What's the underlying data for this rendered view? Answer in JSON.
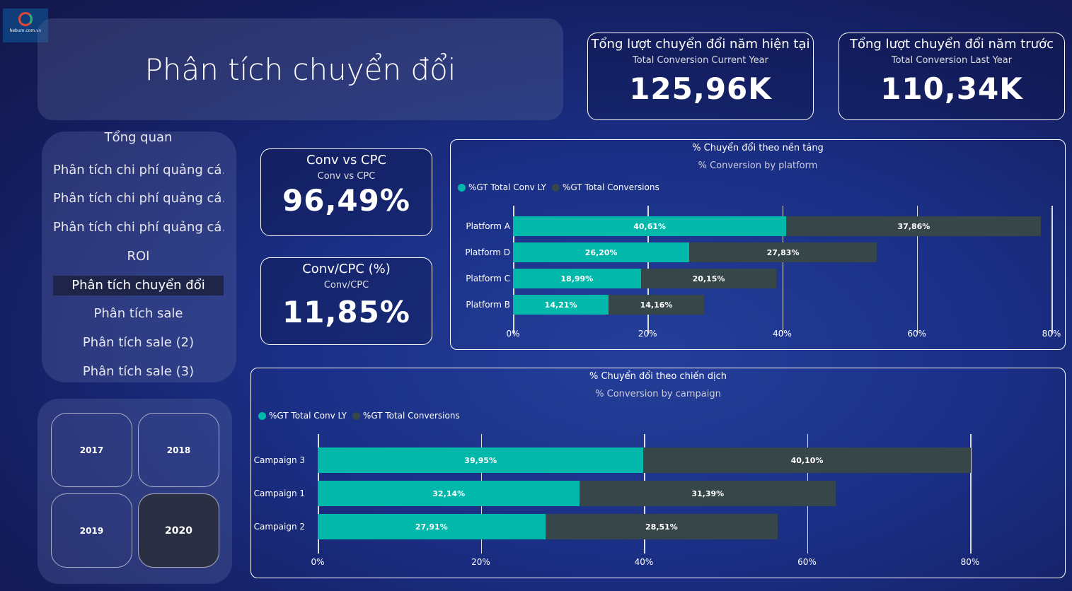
{
  "logo": {
    "text": "hebum.com.vn"
  },
  "title": "Phân tích chuyển đổi",
  "kpis": [
    {
      "title": "Tổng lượt chuyển đổi năm hiện tại",
      "subtitle": "Total Conversion Current Year",
      "value": "125,96K"
    },
    {
      "title": "Tổng lượt chuyển đổi năm trước",
      "subtitle": "Total Conversion Last Year",
      "value": "110,34K"
    },
    {
      "title": "Conv vs CPC",
      "subtitle": "Conv vs CPC",
      "value": "96,49%"
    },
    {
      "title": "Conv/CPC (%)",
      "subtitle": "Conv/CPC",
      "value": "11,85%"
    }
  ],
  "nav": {
    "items": [
      "Tổng quan",
      "Phân tích chi phí quảng cá...",
      "Phân tích chi phí quảng cá...",
      "Phân tích chi phí quảng cá...",
      "ROI",
      "Phân tích chuyển đổi",
      "Phân tích sale",
      "Phân tích sale (2)",
      "Phân tích sale (3)"
    ],
    "active_index": 5
  },
  "years": {
    "items": [
      "2017",
      "2018",
      "2019",
      "2020"
    ],
    "selected": "2020"
  },
  "colors": {
    "ly": "#01b8aa",
    "cur": "#374649"
  },
  "chart_data": [
    {
      "type": "bar",
      "stacked": true,
      "orientation": "horizontal",
      "title": "% Chuyển đổi theo nền tảng",
      "subtitle": "% Conversion by platform",
      "legend": [
        "%GT Total Conv LY",
        "%GT Total Conversions"
      ],
      "legend_position": "top-left",
      "categories": [
        "Platform A",
        "Platform D",
        "Platform C",
        "Platform B"
      ],
      "series": [
        {
          "name": "%GT Total Conv LY",
          "values": [
            40.61,
            26.2,
            18.99,
            14.21
          ],
          "labels": [
            "40,61%",
            "26,20%",
            "18,99%",
            "14,21%"
          ]
        },
        {
          "name": "%GT Total Conversions",
          "values": [
            37.86,
            27.83,
            20.15,
            14.16
          ],
          "labels": [
            "37,86%",
            "27,83%",
            "20,15%",
            "14,16%"
          ]
        }
      ],
      "xlim": [
        0,
        80
      ],
      "ticks": [
        "0%",
        "20%",
        "40%",
        "60%",
        "80%"
      ],
      "tick_values": [
        0,
        20,
        40,
        60,
        80
      ]
    },
    {
      "type": "bar",
      "stacked": true,
      "orientation": "horizontal",
      "title": "% Chuyển đổi theo chiến dịch",
      "subtitle": "% Conversion by campaign",
      "legend": [
        "%GT Total Conv LY",
        "%GT Total Conversions"
      ],
      "legend_position": "top-left",
      "categories": [
        "Campaign 3",
        "Campaign 1",
        "Campaign 2"
      ],
      "series": [
        {
          "name": "%GT Total Conv LY",
          "values": [
            39.95,
            32.14,
            27.91
          ],
          "labels": [
            "39,95%",
            "32,14%",
            "27,91%"
          ]
        },
        {
          "name": "%GT Total Conversions",
          "values": [
            40.1,
            31.39,
            28.51
          ],
          "labels": [
            "40,10%",
            "31,39%",
            "28,51%"
          ]
        }
      ],
      "xlim": [
        0,
        80
      ],
      "ticks": [
        "0%",
        "20%",
        "40%",
        "60%",
        "80%"
      ],
      "tick_values": [
        0,
        20,
        40,
        60,
        80
      ]
    }
  ]
}
